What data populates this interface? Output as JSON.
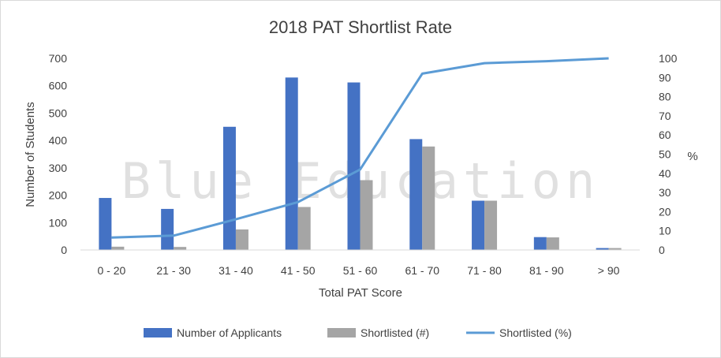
{
  "chart_data": {
    "type": "bar",
    "title": "2018 PAT Shortlist Rate",
    "xlabel": "Total PAT Score",
    "ylabel": "Number of Students",
    "y2label": "%",
    "categories": [
      "0 - 20",
      "21 - 30",
      "31 - 40",
      "41 - 50",
      "51 - 60",
      "61 - 70",
      "71 - 80",
      "81 - 90",
      "> 90"
    ],
    "ylim": [
      0,
      700
    ],
    "y2lim": [
      0,
      100
    ],
    "yticks": [
      0,
      100,
      200,
      300,
      400,
      500,
      600,
      700
    ],
    "y2ticks": [
      0,
      10,
      20,
      30,
      40,
      50,
      60,
      70,
      80,
      90,
      100
    ],
    "series": [
      {
        "name": "Number of Applicants",
        "type": "bar",
        "axis": "left",
        "color": "#4472c4",
        "values": [
          190,
          150,
          450,
          630,
          612,
          405,
          180,
          47,
          7
        ]
      },
      {
        "name": "Shortlisted (#)",
        "type": "bar",
        "axis": "left",
        "color": "#a5a5a5",
        "values": [
          12,
          11,
          75,
          157,
          255,
          378,
          180,
          46,
          7
        ]
      },
      {
        "name": "Shortlisted (%)",
        "type": "line",
        "axis": "right",
        "color": "#5b9bd5",
        "values": [
          6.5,
          7.5,
          16,
          25,
          42,
          92,
          97.5,
          98.5,
          100
        ]
      }
    ],
    "grid": false,
    "legend_position": "bottom"
  },
  "watermark": "Blue Education"
}
